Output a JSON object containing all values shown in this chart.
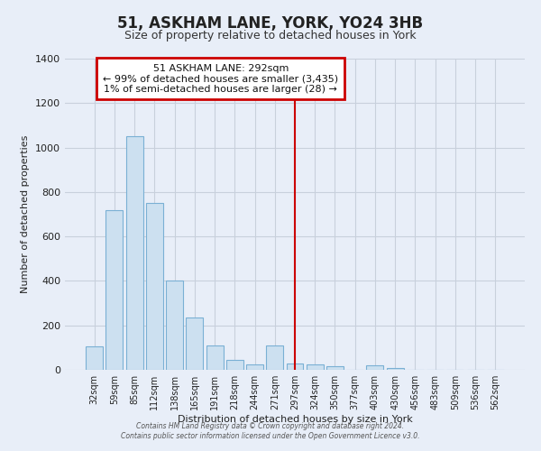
{
  "title": "51, ASKHAM LANE, YORK, YO24 3HB",
  "subtitle": "Size of property relative to detached houses in York",
  "xlabel": "Distribution of detached houses by size in York",
  "ylabel": "Number of detached properties",
  "bar_labels": [
    "32sqm",
    "59sqm",
    "85sqm",
    "112sqm",
    "138sqm",
    "165sqm",
    "191sqm",
    "218sqm",
    "244sqm",
    "271sqm",
    "297sqm",
    "324sqm",
    "350sqm",
    "377sqm",
    "403sqm",
    "430sqm",
    "456sqm",
    "483sqm",
    "509sqm",
    "536sqm",
    "562sqm"
  ],
  "bar_values": [
    105,
    720,
    1050,
    750,
    400,
    235,
    110,
    45,
    25,
    110,
    30,
    25,
    15,
    0,
    20,
    10,
    0,
    0,
    0,
    0,
    0
  ],
  "bar_color": "#cce0f0",
  "bar_edge_color": "#7ab0d4",
  "vline_x_idx": 10,
  "vline_color": "#cc0000",
  "ylim": [
    0,
    1400
  ],
  "yticks": [
    0,
    200,
    400,
    600,
    800,
    1000,
    1200,
    1400
  ],
  "annotation_title": "51 ASKHAM LANE: 292sqm",
  "annotation_line1": "← 99% of detached houses are smaller (3,435)",
  "annotation_line2": "1% of semi-detached houses are larger (28) →",
  "annotation_box_color": "white",
  "annotation_border_color": "#cc0000",
  "grid_color": "#c8d0dc",
  "bg_color": "#e8eef8",
  "title_fontsize": 12,
  "subtitle_fontsize": 9,
  "footer1": "Contains HM Land Registry data © Crown copyright and database right 2024.",
  "footer2": "Contains public sector information licensed under the Open Government Licence v3.0."
}
